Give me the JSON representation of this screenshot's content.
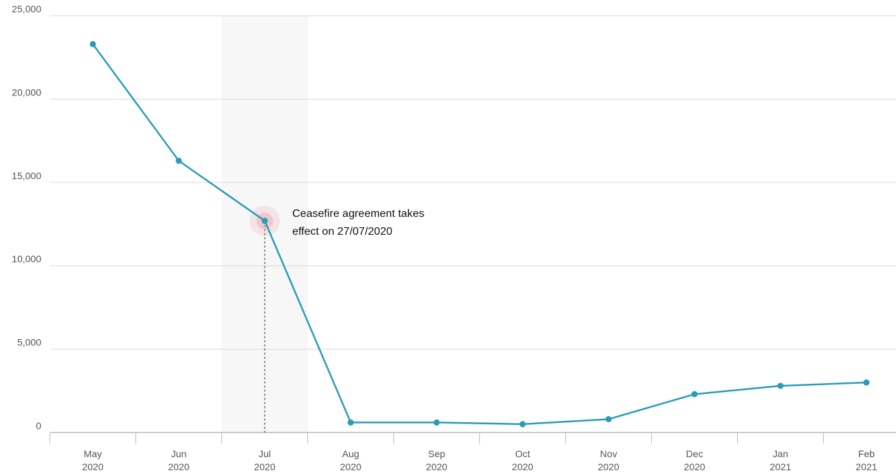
{
  "chart_data": {
    "type": "line",
    "title": "",
    "xlabel": "",
    "ylabel": "",
    "ylim": [
      0,
      25000
    ],
    "yticks": [
      "0",
      "5,000",
      "10,000",
      "15,000",
      "20,000",
      "25,000"
    ],
    "categories": [
      [
        "May",
        "2020"
      ],
      [
        "Jun",
        "2020"
      ],
      [
        "Jul",
        "2020"
      ],
      [
        "Aug",
        "2020"
      ],
      [
        "Sep",
        "2020"
      ],
      [
        "Oct",
        "2020"
      ],
      [
        "Nov",
        "2020"
      ],
      [
        "Dec",
        "2020"
      ],
      [
        "Jan",
        "2021"
      ],
      [
        "Feb",
        "2021"
      ]
    ],
    "series": [
      {
        "values": [
          23300,
          16300,
          12700,
          600,
          600,
          500,
          800,
          2300,
          2800,
          3000
        ],
        "color": "#2a9cb8"
      }
    ],
    "grid": true,
    "annotation": {
      "category_index": 2,
      "value": 12700,
      "lines": [
        "Ceasefire agreement takes",
        "effect on 27/07/2020"
      ],
      "highlight_color": "#e8a3a9",
      "shaded_band": true
    }
  }
}
